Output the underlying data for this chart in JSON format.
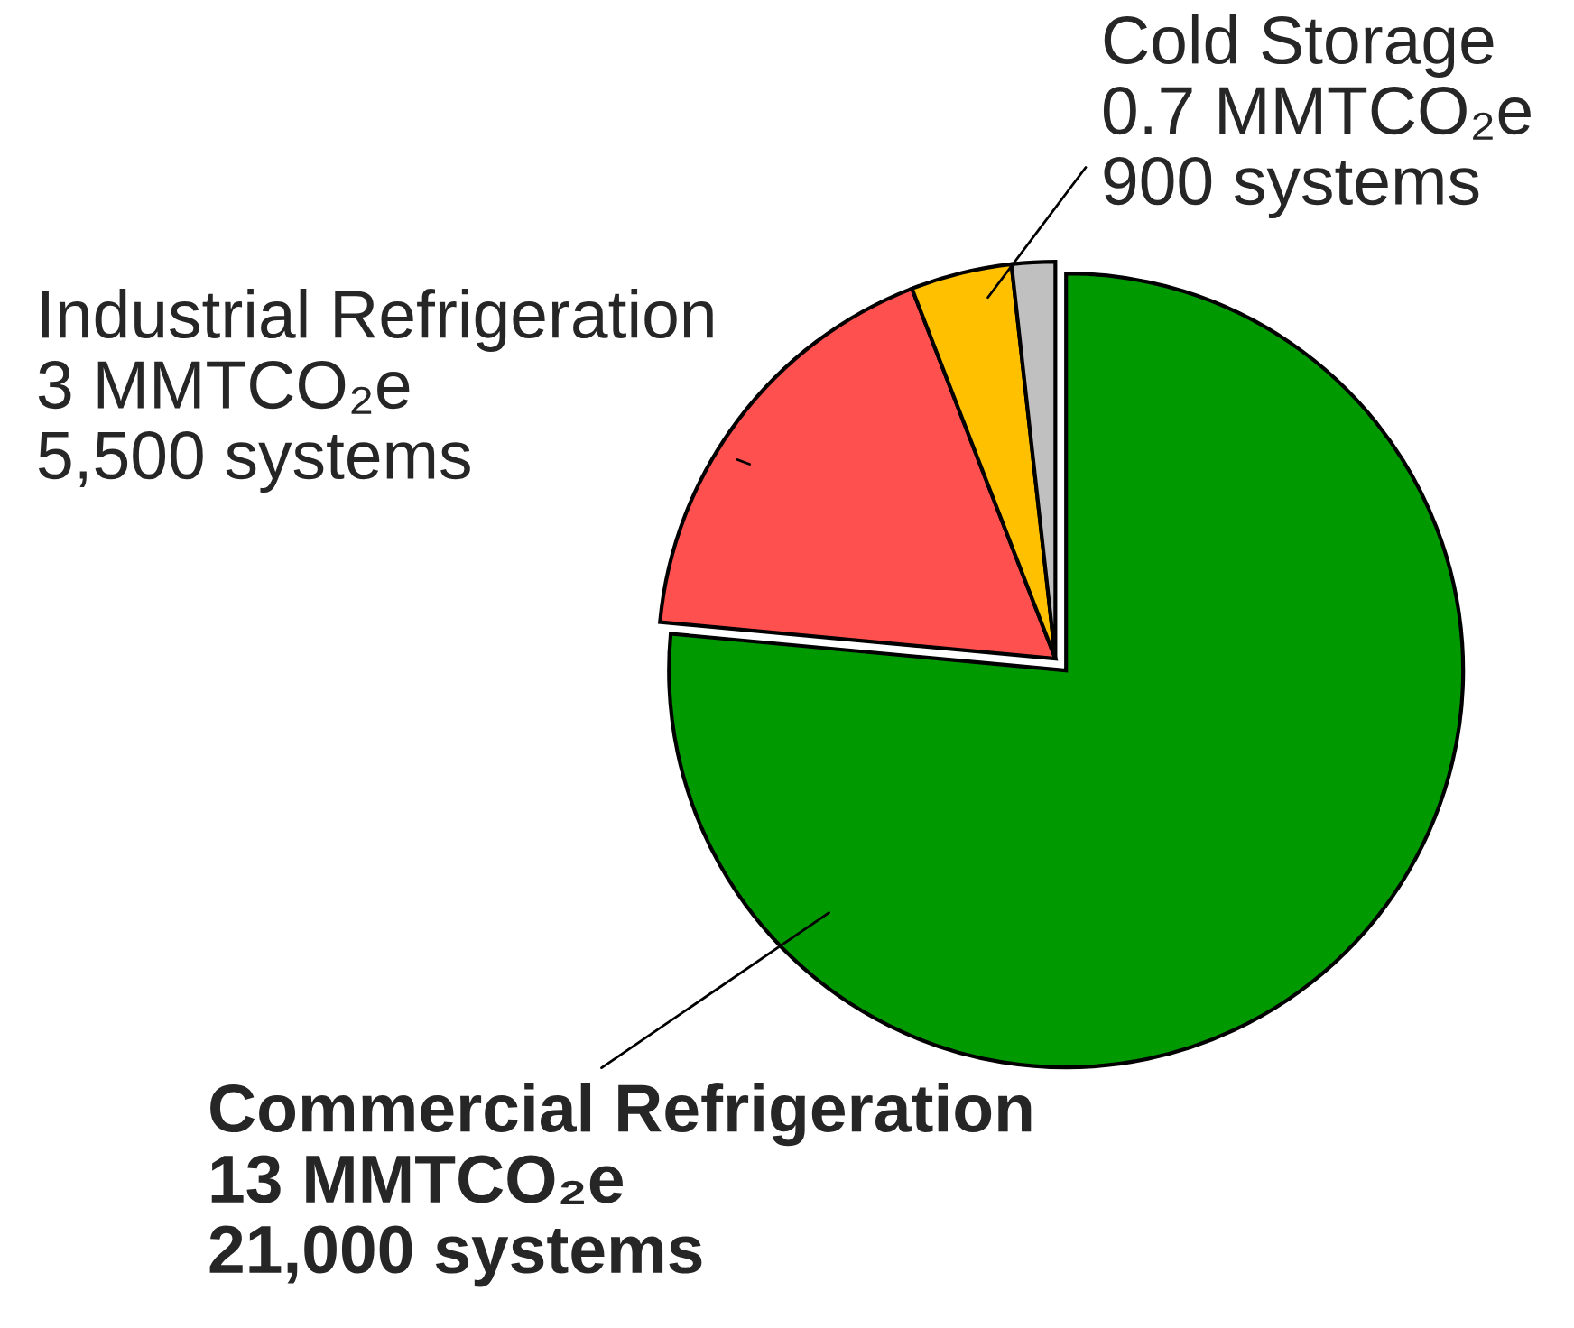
{
  "chart_data": {
    "type": "pie",
    "categories": [
      "Commercial Refrigeration",
      "Industrial Refrigeration",
      "Cold Storage",
      null
    ],
    "values": [
      13,
      3,
      0.7,
      0.3
    ],
    "value_labels": [
      "13 MMTCO₂e\n21,000 systems",
      "3 MMTCO₂e\n5,500 systems",
      "0.7 MMTCO₂e\n900 systems",
      null
    ],
    "colors": [
      "#009900",
      "#ff5050",
      "#ffc000",
      "#c0c0c0"
    ]
  }
}
